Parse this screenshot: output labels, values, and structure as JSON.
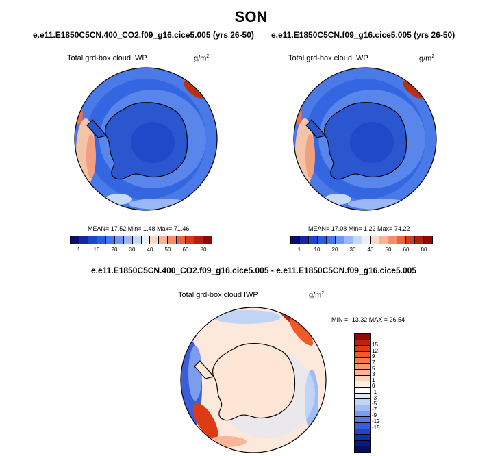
{
  "season": "SON",
  "left_panel": {
    "case": "e.e11.E1850C5CN.400_CO2.f09_g16.cice5.005 (yrs 26-50)",
    "variable": "Total grd-box cloud IWP",
    "unit": "g/m",
    "unit_exp": "2",
    "stats": "MEAN= 17.52  Min=  1.48  Max= 71.46"
  },
  "right_panel": {
    "case": "e.e11.E1850C5CN.f09_g16.cice5.005 (yrs 26-50)",
    "variable": "Total grd-box cloud IWP",
    "unit": "g/m",
    "unit_exp": "2",
    "stats": "MEAN= 17.08  Min=  1.22  Max= 74.22"
  },
  "diff_panel": {
    "case": "e.e11.E1850C5CN.400_CO2.f09_g16.cice5.005 - e.e11.E1850C5CN.f09_g16.cice5.005",
    "variable": "Total grd-box cloud IWP",
    "unit": "g/m",
    "unit_exp": "2",
    "stats": "MIN = -13.32 MAX =  26.54"
  },
  "abs_colorbar": {
    "colors": [
      "#0a0a78",
      "#1428a0",
      "#1e46c8",
      "#2c5ee0",
      "#4678f0",
      "#6e96f5",
      "#9ab8f8",
      "#c4d8fa",
      "#eef2f8",
      "#fad8c4",
      "#f8b496",
      "#f28c6a",
      "#e8643c",
      "#d23c1e",
      "#b41e0f",
      "#8c0a05"
    ],
    "ticks": [
      "1",
      "10",
      "20",
      "30",
      "40",
      "50",
      "60",
      "80"
    ]
  },
  "diff_colorbar": {
    "colors": [
      "#8c0a05",
      "#c0200e",
      "#de3a14",
      "#ee5a28",
      "#f4784a",
      "#f8966e",
      "#fab496",
      "#fcd4bc",
      "#fdeee4",
      "#ffffff",
      "#dce8fa",
      "#c0d4f6",
      "#a0bcf2",
      "#7c9cec",
      "#5a7ce2",
      "#3a5ed8",
      "#2244c8",
      "#1430a8",
      "#0a1880",
      "#06105a"
    ],
    "labels": [
      "15",
      "12",
      "9",
      "7",
      "5",
      "3",
      "1",
      "0",
      "-1",
      "-3",
      "-5",
      "-7",
      "-9",
      "-12",
      "-15"
    ]
  }
}
